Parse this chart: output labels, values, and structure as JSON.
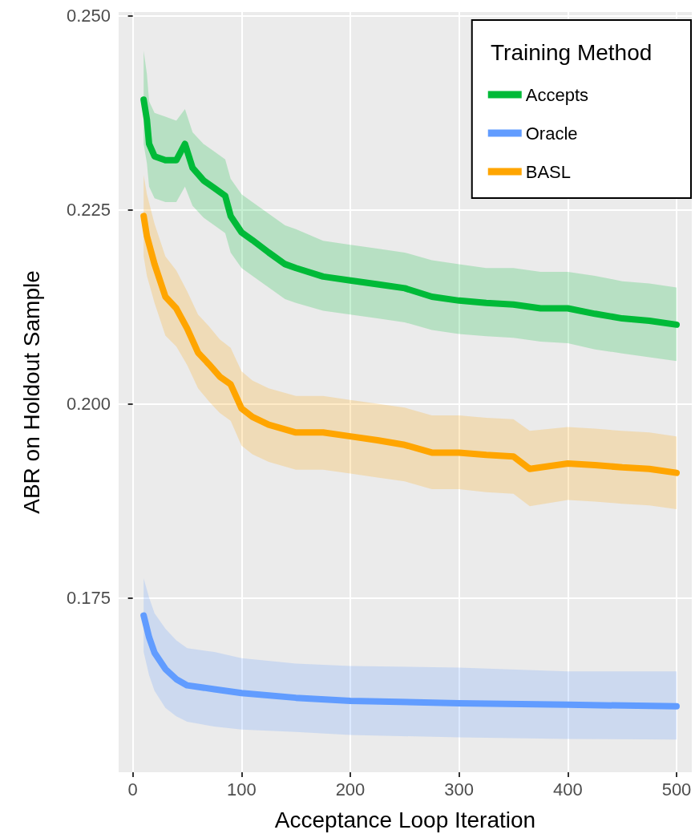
{
  "chart_data": {
    "type": "line",
    "xlabel": "Acceptance Loop Iteration",
    "ylabel": "ABR on Holdout Sample",
    "legend_title": "Training Method",
    "legend": "top right",
    "grid": true,
    "line_style": "solid",
    "xlim": [
      -13,
      514
    ],
    "xticks": [
      0,
      100,
      200,
      300,
      400,
      500
    ],
    "ylim": [
      0.1525,
      0.2505
    ],
    "yticks": [
      {
        "value": 0.175,
        "label": "0.175"
      },
      {
        "value": 0.2,
        "label": "0.200"
      },
      {
        "value": 0.225,
        "label": "0.225"
      },
      {
        "value": 0.25,
        "label": "0.250"
      }
    ],
    "series": [
      {
        "name": "Accepts",
        "color": "#00ba38",
        "x": [
          10,
          13,
          15,
          20,
          30,
          40,
          48,
          55,
          65,
          75,
          85,
          90,
          100,
          110,
          125,
          140,
          150,
          175,
          200,
          225,
          250,
          275,
          300,
          325,
          350,
          375,
          400,
          425,
          450,
          475,
          500
        ],
        "values": [
          0.2392,
          0.2366,
          0.2335,
          0.2319,
          0.2314,
          0.2314,
          0.2335,
          0.2304,
          0.2288,
          0.2278,
          0.2268,
          0.2242,
          0.2221,
          0.2211,
          0.2195,
          0.218,
          0.2175,
          0.2164,
          0.2159,
          0.2154,
          0.2149,
          0.2138,
          0.2133,
          0.213,
          0.2128,
          0.2123,
          0.2123,
          0.2116,
          0.211,
          0.2107,
          0.2102
        ],
        "upper": [
          0.2455,
          0.2425,
          0.239,
          0.2375,
          0.237,
          0.2365,
          0.238,
          0.235,
          0.2335,
          0.2325,
          0.2315,
          0.229,
          0.227,
          0.226,
          0.2245,
          0.223,
          0.2225,
          0.221,
          0.2205,
          0.22,
          0.2195,
          0.2185,
          0.218,
          0.2175,
          0.2175,
          0.217,
          0.217,
          0.2165,
          0.2158,
          0.2155,
          0.215
        ],
        "lower": [
          0.2335,
          0.231,
          0.228,
          0.2265,
          0.226,
          0.226,
          0.228,
          0.2255,
          0.224,
          0.223,
          0.222,
          0.2195,
          0.2175,
          0.2165,
          0.215,
          0.2135,
          0.213,
          0.212,
          0.2115,
          0.211,
          0.2105,
          0.2095,
          0.209,
          0.2087,
          0.2085,
          0.208,
          0.2078,
          0.207,
          0.2065,
          0.206,
          0.2055
        ]
      },
      {
        "name": "Oracle",
        "color": "#619cff",
        "x": [
          10,
          15,
          20,
          30,
          40,
          50,
          75,
          100,
          150,
          200,
          300,
          400,
          500
        ],
        "values": [
          0.1727,
          0.1699,
          0.1679,
          0.1658,
          0.1645,
          0.1637,
          0.1632,
          0.1627,
          0.1621,
          0.1617,
          0.1614,
          0.1612,
          0.161
        ],
        "upper": [
          0.1775,
          0.175,
          0.173,
          0.171,
          0.1695,
          0.1685,
          0.168,
          0.1672,
          0.1665,
          0.1662,
          0.166,
          0.1655,
          0.1655
        ],
        "lower": [
          0.168,
          0.165,
          0.163,
          0.1608,
          0.1597,
          0.159,
          0.1584,
          0.158,
          0.1577,
          0.1573,
          0.157,
          0.1568,
          0.1567
        ]
      },
      {
        "name": "BASL",
        "color": "#ffa500",
        "x": [
          10,
          13,
          20,
          30,
          40,
          50,
          60,
          70,
          80,
          90,
          100,
          110,
          125,
          150,
          175,
          200,
          225,
          250,
          275,
          300,
          325,
          350,
          365,
          400,
          425,
          450,
          475,
          500
        ],
        "values": [
          0.2242,
          0.2216,
          0.218,
          0.2138,
          0.2123,
          0.2097,
          0.2066,
          0.2051,
          0.2035,
          0.2025,
          0.1994,
          0.1983,
          0.1973,
          0.1963,
          0.1963,
          0.1958,
          0.1953,
          0.1947,
          0.1937,
          0.1937,
          0.1934,
          0.1932,
          0.1916,
          0.1923,
          0.1921,
          0.1918,
          0.1916,
          0.1911
        ],
        "upper": [
          0.2295,
          0.227,
          0.2232,
          0.219,
          0.2172,
          0.2145,
          0.2115,
          0.21,
          0.2083,
          0.2072,
          0.2042,
          0.203,
          0.202,
          0.201,
          0.201,
          0.2005,
          0.2,
          0.1995,
          0.1985,
          0.1985,
          0.1982,
          0.198,
          0.1965,
          0.197,
          0.1968,
          0.1965,
          0.1963,
          0.1958
        ],
        "lower": [
          0.219,
          0.2165,
          0.213,
          0.2088,
          0.2074,
          0.205,
          0.202,
          0.2003,
          0.1988,
          0.1978,
          0.1946,
          0.1935,
          0.1925,
          0.1915,
          0.1915,
          0.191,
          0.1905,
          0.19,
          0.189,
          0.189,
          0.1886,
          0.1884,
          0.1868,
          0.1876,
          0.1874,
          0.1871,
          0.1869,
          0.1864
        ]
      }
    ]
  }
}
